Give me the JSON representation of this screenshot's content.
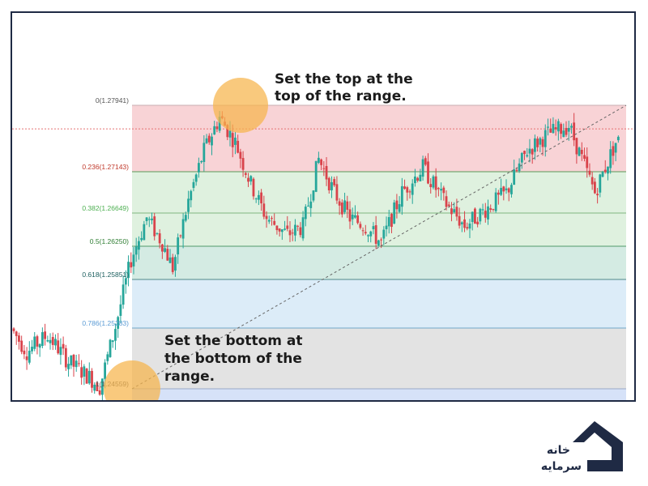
{
  "chart_data": {
    "type": "candlestick",
    "fib_levels": [
      {
        "ratio": "0",
        "price": "1.27941",
        "label": "0(1.27941)",
        "fill": "#f8d3d6",
        "line": "#c9aeb1",
        "text": "#555555"
      },
      {
        "ratio": "0.236",
        "price": "1.27143",
        "label": "0.236(1.27143)",
        "fill": "#dff1df",
        "line": "#5a9a5a",
        "text": "#c0392b"
      },
      {
        "ratio": "0.382",
        "price": "1.26649",
        "label": "0.382(1.26649)",
        "fill": "#dff1df",
        "line": "#7fb87f",
        "text": "#4caf50"
      },
      {
        "ratio": "0.5",
        "price": "1.26250",
        "label": "0.5(1.26250)",
        "fill": "#d4ebe3",
        "line": "#4f9a6a",
        "text": "#2e7d32"
      },
      {
        "ratio": "0.618",
        "price": "1.25851",
        "label": "0.618(1.25851)",
        "fill": "#dcecf8",
        "line": "#4f8a8a",
        "text": "#1b5e5e"
      },
      {
        "ratio": "0.786",
        "price": "1.25283",
        "label": "0.786(1.25283)",
        "fill": "#e3e3e3",
        "line": "#6fa7c9",
        "text": "#5b9bd5"
      },
      {
        "ratio": "1",
        "price": "1.24559",
        "label": "1(1.24559)",
        "fill": "#d6e2f8",
        "line": "#9aa9c7",
        "text": "#555555"
      }
    ],
    "current_price": 1.2766,
    "colors": {
      "up": "#26a69a",
      "down": "#d9434b",
      "trendline": "#666666",
      "current_line": "#e57373",
      "highlight": "#f6b44b"
    },
    "annotations": {
      "top": [
        "Set the top at the",
        "top of the range."
      ],
      "bottom": [
        "Set the bottom at",
        "the bottom of the",
        "range."
      ]
    }
  },
  "logo": {
    "line1": "خانه",
    "line2": "سرمایه",
    "icon": "house-icon"
  }
}
